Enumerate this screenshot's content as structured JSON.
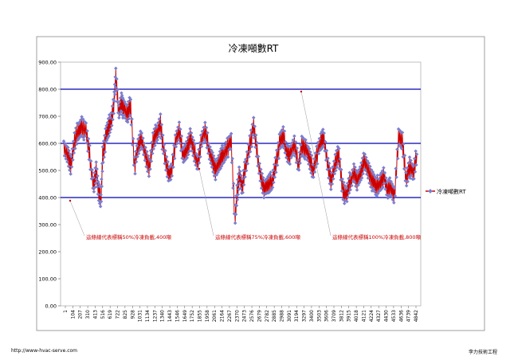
{
  "footer": {
    "left_text": "http://www-hvac-serve.com",
    "right_text": "李力技術工程"
  },
  "chart_data": {
    "type": "line",
    "title": "冷凍噸數RT",
    "xlabel": "",
    "ylabel": "",
    "ylim": [
      0,
      900
    ],
    "yticks": [
      "0.00",
      "100.00",
      "200.00",
      "300.00",
      "400.00",
      "500.00",
      "600.00",
      "700.00",
      "800.00",
      "900.00"
    ],
    "x_tick_labels": [
      "1",
      "104",
      "207",
      "310",
      "413",
      "516",
      "619",
      "722",
      "825",
      "928",
      "1031",
      "1134",
      "1237",
      "1340",
      "1443",
      "1546",
      "1649",
      "1752",
      "1855",
      "1958",
      "2061",
      "2164",
      "2267",
      "2370",
      "2473",
      "2576",
      "2679",
      "2782",
      "2885",
      "2988",
      "3091",
      "3194",
      "3297",
      "3400",
      "3503",
      "3606",
      "3709",
      "3812",
      "3915",
      "4018",
      "4121",
      "4224",
      "4327",
      "4430",
      "4533",
      "4636",
      "4739",
      "4842"
    ],
    "x_range": [
      1,
      4900
    ],
    "grid": false,
    "legend": {
      "position": "right",
      "label": "冷凍噸數RT",
      "color": "#cc0000"
    },
    "series": [
      {
        "name": "冷凍噸數RT",
        "color": "#cc0000",
        "marker_color": "#7b7fcf",
        "x": [
          1,
          60,
          104,
          150,
          207,
          250,
          310,
          360,
          413,
          450,
          480,
          516,
          540,
          580,
          619,
          660,
          700,
          722,
          760,
          800,
          825,
          880,
          928,
          980,
          1031,
          1080,
          1134,
          1190,
          1237,
          1290,
          1340,
          1390,
          1443,
          1490,
          1546,
          1600,
          1649,
          1700,
          1752,
          1800,
          1855,
          1900,
          1958,
          2010,
          2061,
          2110,
          2164,
          2210,
          2267,
          2320,
          2370,
          2400,
          2430,
          2473,
          2520,
          2576,
          2630,
          2679,
          2730,
          2782,
          2830,
          2885,
          2930,
          2988,
          3040,
          3091,
          3140,
          3194,
          3250,
          3297,
          3350,
          3400,
          3450,
          3503,
          3560,
          3606,
          3660,
          3709,
          3760,
          3812,
          3860,
          3915,
          3960,
          4018,
          4070,
          4121,
          4170,
          4224,
          4280,
          4327,
          4380,
          4430,
          4480,
          4533,
          4580,
          4636,
          4690,
          4739,
          4790,
          4842,
          4890
        ],
        "values": [
          590,
          560,
          520,
          600,
          650,
          670,
          640,
          550,
          450,
          500,
          420,
          390,
          560,
          620,
          650,
          690,
          760,
          840,
          720,
          760,
          730,
          700,
          740,
          520,
          580,
          620,
          560,
          510,
          600,
          640,
          680,
          560,
          490,
          500,
          600,
          640,
          560,
          580,
          620,
          570,
          530,
          600,
          640,
          580,
          540,
          500,
          530,
          560,
          590,
          600,
          320,
          420,
          480,
          430,
          520,
          600,
          660,
          560,
          480,
          430,
          440,
          460,
          520,
          600,
          620,
          570,
          560,
          590,
          520,
          600,
          580,
          540,
          500,
          560,
          600,
          620,
          520,
          460,
          520,
          560,
          440,
          400,
          450,
          500,
          460,
          490,
          540,
          500,
          460,
          430,
          460,
          480,
          420,
          440,
          410,
          620,
          600,
          470,
          520,
          480,
          560
        ]
      }
    ],
    "reference_lines": [
      {
        "value": 400,
        "color": "#0000b0",
        "label": "這條線代表標稱50%冷凍負載,400噸"
      },
      {
        "value": 600,
        "color": "#0000b0",
        "label": "這條線代表標稱75%冷凍負載,600噸"
      },
      {
        "value": 800,
        "color": "#0000b0",
        "label": "這條線代表標稱100%冷凍負載,800噸"
      }
    ]
  }
}
